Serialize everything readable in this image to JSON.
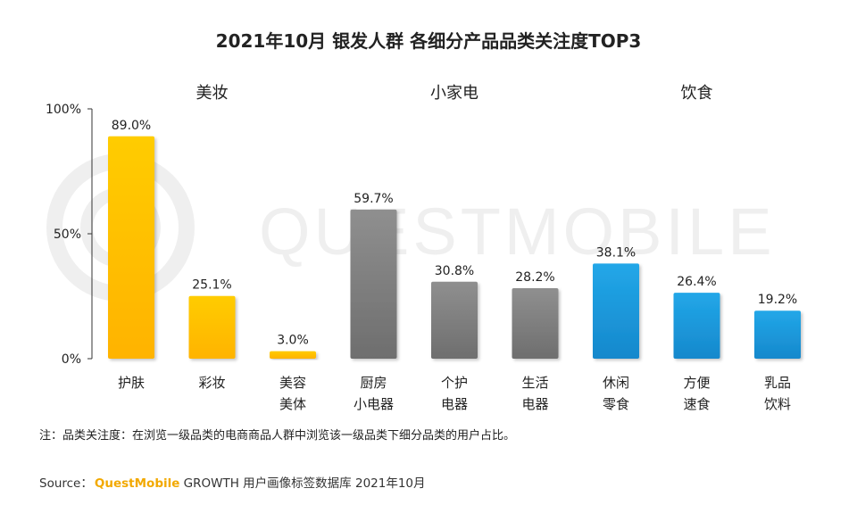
{
  "chart_data": {
    "type": "bar",
    "title": "2021年10月 银发人群 各细分产品品类关注度TOP3",
    "groups": [
      {
        "name": "美妆",
        "color": "#ffc400"
      },
      {
        "name": "小家电",
        "color": "#8c8c8c"
      },
      {
        "name": "饮食",
        "color": "#1f9ee0"
      }
    ],
    "categories": [
      {
        "label": [
          "护肤"
        ],
        "value": 89.0,
        "value_label": "89.0%",
        "group": 0
      },
      {
        "label": [
          "彩妆"
        ],
        "value": 25.1,
        "value_label": "25.1%",
        "group": 0
      },
      {
        "label": [
          "美容",
          "美体"
        ],
        "value": 3.0,
        "value_label": "3.0%",
        "group": 0
      },
      {
        "label": [
          "厨房",
          "小电器"
        ],
        "value": 59.7,
        "value_label": "59.7%",
        "group": 1
      },
      {
        "label": [
          "个护",
          "电器"
        ],
        "value": 30.8,
        "value_label": "30.8%",
        "group": 1
      },
      {
        "label": [
          "生活",
          "电器"
        ],
        "value": 28.2,
        "value_label": "28.2%",
        "group": 1
      },
      {
        "label": [
          "休闲",
          "零食"
        ],
        "value": 38.1,
        "value_label": "38.1%",
        "group": 2
      },
      {
        "label": [
          "方便",
          "速食"
        ],
        "value": 26.4,
        "value_label": "26.4%",
        "group": 2
      },
      {
        "label": [
          "乳品",
          "饮料"
        ],
        "value": 19.2,
        "value_label": "19.2%",
        "group": 2
      }
    ],
    "yticks": [
      {
        "value": 0,
        "label": "0%"
      },
      {
        "value": 50,
        "label": "50%"
      },
      {
        "value": 100,
        "label": "100%"
      }
    ],
    "ylim": [
      0,
      100
    ],
    "grid": false
  },
  "note": "注：品类关注度：在浏览一级品类的电商商品人群中浏览该一级品类下细分品类的用户占比。",
  "source": {
    "prefix": "Source：",
    "brand": "QuestMobile",
    "suffix": " GROWTH 用户画像标签数据库 2021年10月"
  },
  "watermark": "QUESTMOBILE"
}
